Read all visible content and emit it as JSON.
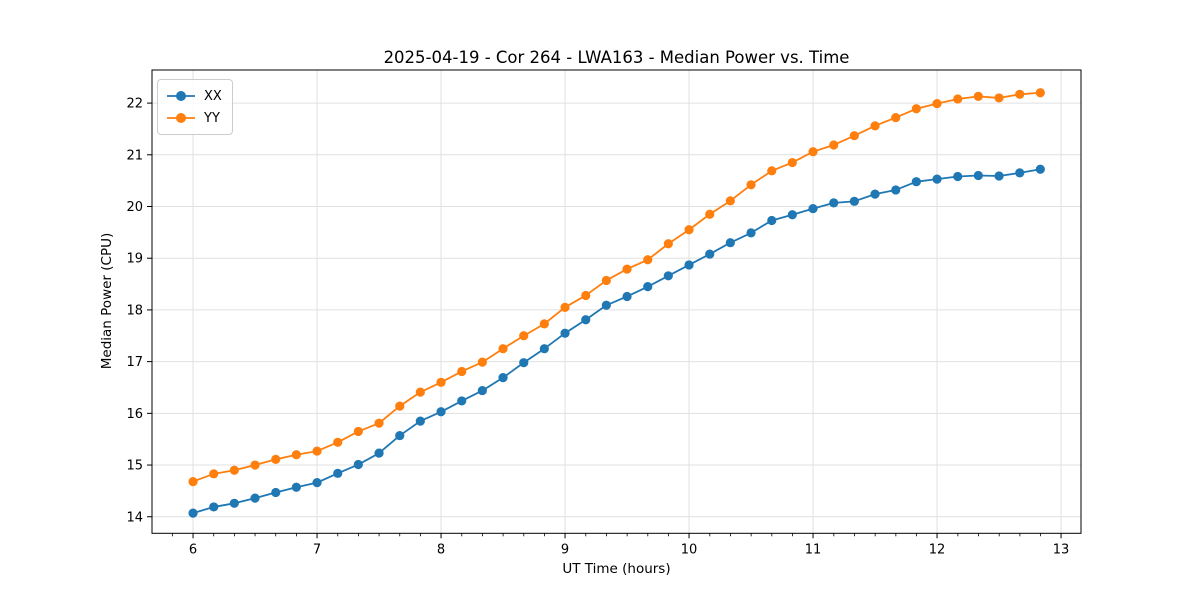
{
  "chart_data": {
    "type": "line",
    "title": "2025-04-19 - Cor 264 - LWA163 - Median Power vs. Time",
    "xlabel": "UT Time (hours)",
    "ylabel": "Median Power (CPU)",
    "xlim": [
      5.669,
      13.161
    ],
    "ylim": [
      13.68,
      22.64
    ],
    "xticks": [
      6,
      7,
      8,
      9,
      10,
      11,
      12,
      13
    ],
    "yticks": [
      14,
      15,
      16,
      17,
      18,
      19,
      20,
      21,
      22
    ],
    "x_minor_step": 0.1667,
    "grid": true,
    "legend_position": "upper left",
    "x": [
      6.0,
      6.167,
      6.333,
      6.5,
      6.667,
      6.833,
      7.0,
      7.167,
      7.333,
      7.5,
      7.667,
      7.833,
      8.0,
      8.167,
      8.333,
      8.5,
      8.667,
      8.833,
      9.0,
      9.167,
      9.333,
      9.5,
      9.667,
      9.833,
      10.0,
      10.167,
      10.333,
      10.5,
      10.667,
      10.833,
      11.0,
      11.167,
      11.333,
      11.5,
      11.667,
      11.833,
      12.0,
      12.167,
      12.333,
      12.5,
      12.667,
      12.833
    ],
    "series": [
      {
        "name": "XX",
        "color": "#1f77b4",
        "values": [
          14.07,
          14.19,
          14.26,
          14.36,
          14.47,
          14.57,
          14.66,
          14.84,
          15.01,
          15.23,
          15.57,
          15.85,
          16.03,
          16.24,
          16.44,
          16.69,
          16.98,
          17.25,
          17.55,
          17.81,
          18.09,
          18.26,
          18.45,
          18.66,
          18.87,
          19.08,
          19.3,
          19.49,
          19.73,
          19.84,
          19.96,
          20.07,
          20.1,
          20.24,
          20.32,
          20.48,
          20.53,
          20.58,
          20.6,
          20.59,
          20.65,
          20.72
        ]
      },
      {
        "name": "YY",
        "color": "#ff7f0e",
        "values": [
          14.68,
          14.83,
          14.9,
          15.0,
          15.11,
          15.2,
          15.27,
          15.44,
          15.65,
          15.81,
          16.14,
          16.41,
          16.6,
          16.81,
          16.99,
          17.25,
          17.5,
          17.73,
          18.05,
          18.28,
          18.57,
          18.79,
          18.97,
          19.28,
          19.55,
          19.85,
          20.11,
          20.42,
          20.69,
          20.85,
          21.06,
          21.19,
          21.37,
          21.56,
          21.72,
          21.89,
          21.99,
          22.08,
          22.13,
          22.1,
          22.17,
          22.2
        ]
      }
    ],
    "colors": {
      "grid": "#e0e0e0",
      "spine": "#000000",
      "tick_label": "#000000",
      "background": "#ffffff"
    }
  }
}
